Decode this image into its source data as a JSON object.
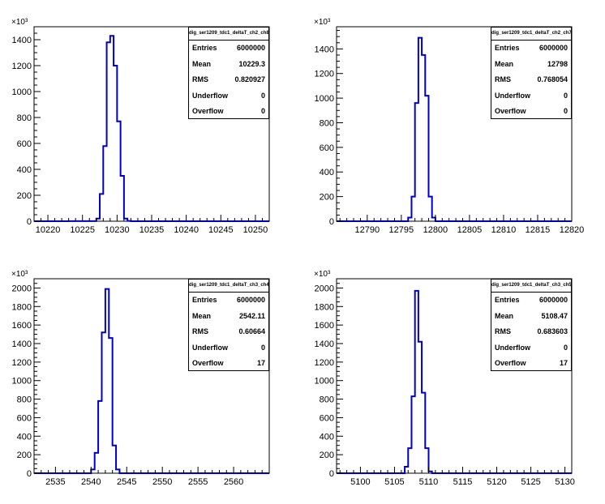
{
  "chart_data": [
    {
      "type": "histogram",
      "title": "dig_ser1209_tdc1_deltaT_ch2_ch8",
      "y_exponent_label": "×10³",
      "xlim": [
        10218,
        10252
      ],
      "ylim": [
        0,
        1500
      ],
      "xticks": [
        10220,
        10225,
        10230,
        10235,
        10240,
        10245,
        10250
      ],
      "yticks": [
        0,
        200,
        400,
        600,
        800,
        1000,
        1200,
        1400
      ],
      "ytick_labels": [
        "0",
        "200",
        "400",
        "600",
        "800",
        "1000",
        "1200",
        "1400"
      ],
      "bin_width": 0.5,
      "bins": [
        [
          10223.0,
          10227.0,
          1
        ],
        [
          10227.0,
          10227.5,
          20
        ],
        [
          10227.5,
          10228.0,
          210
        ],
        [
          10228.0,
          10228.5,
          580
        ],
        [
          10228.5,
          10229.0,
          1380
        ],
        [
          10229.0,
          10229.5,
          1430
        ],
        [
          10229.5,
          10230.0,
          1200
        ],
        [
          10230.0,
          10230.5,
          770
        ],
        [
          10230.5,
          10231.0,
          350
        ],
        [
          10231.0,
          10231.5,
          20
        ],
        [
          10231.5,
          10232.0,
          2
        ]
      ],
      "stats": {
        "Entries": "6000000",
        "Mean": "10229.3",
        "RMS": "0.820927",
        "Underflow": "0",
        "Overflow": "0"
      },
      "line_color": "#0000cc"
    },
    {
      "type": "histogram",
      "title": "dig_ser1209_tdc1_deltaT_ch2_ch7",
      "y_exponent_label": "×10³",
      "xlim": [
        12785.5,
        12820
      ],
      "ylim": [
        0,
        1580
      ],
      "xticks": [
        12790,
        12795,
        12800,
        12805,
        12810,
        12815,
        12820
      ],
      "yticks": [
        0,
        200,
        400,
        600,
        800,
        1000,
        1200,
        1400
      ],
      "ytick_labels": [
        "0",
        "200",
        "400",
        "600",
        "800",
        "1000",
        "1200",
        "1400"
      ],
      "bin_width": 0.5,
      "bins": [
        [
          12796.0,
          12796.5,
          30
        ],
        [
          12796.5,
          12797.0,
          200
        ],
        [
          12797.0,
          12797.5,
          960
        ],
        [
          12797.5,
          12798.0,
          1490
        ],
        [
          12798.0,
          12798.5,
          1350
        ],
        [
          12798.5,
          12799.0,
          1020
        ],
        [
          12799.0,
          12799.5,
          200
        ],
        [
          12799.5,
          12800.0,
          30
        ]
      ],
      "stats": {
        "Entries": "6000000",
        "Mean": "12798",
        "RMS": "0.768054",
        "Underflow": "0",
        "Overflow": "0"
      },
      "line_color": "#0000cc"
    },
    {
      "type": "histogram",
      "title": "dig_ser1209_tdc1_deltaT_ch3_ch4",
      "y_exponent_label": "×10³",
      "xlim": [
        2532,
        2565
      ],
      "ylim": [
        0,
        2100
      ],
      "xticks": [
        2535,
        2540,
        2545,
        2550,
        2555,
        2560
      ],
      "yticks": [
        0,
        200,
        400,
        600,
        800,
        1000,
        1200,
        1400,
        1600,
        1800,
        2000
      ],
      "ytick_labels": [
        "0",
        "200",
        "400",
        "600",
        "800",
        "1000",
        "1200",
        "1400",
        "1600",
        "1800",
        "2000"
      ],
      "bin_width": 0.5,
      "bins": [
        [
          2540.0,
          2540.5,
          40
        ],
        [
          2540.5,
          2541.0,
          220
        ],
        [
          2541.0,
          2541.5,
          780
        ],
        [
          2541.5,
          2542.0,
          1520
        ],
        [
          2542.0,
          2542.5,
          1990
        ],
        [
          2542.5,
          2543.0,
          1460
        ],
        [
          2543.0,
          2543.5,
          300
        ],
        [
          2543.5,
          2544.0,
          40
        ]
      ],
      "stats": {
        "Entries": "6000000",
        "Mean": "2542.11",
        "RMS": "0.60664",
        "Underflow": "0",
        "Overflow": "17"
      },
      "line_color": "#0000cc"
    },
    {
      "type": "histogram",
      "title": "dig_ser1209_tdc1_deltaT_ch3_ch5",
      "y_exponent_label": "×10³",
      "xlim": [
        5096.5,
        5131
      ],
      "ylim": [
        0,
        2100
      ],
      "xticks": [
        5100,
        5105,
        5110,
        5115,
        5120,
        5125,
        5130
      ],
      "yticks": [
        0,
        200,
        400,
        600,
        800,
        1000,
        1200,
        1400,
        1600,
        1800,
        2000
      ],
      "ytick_labels": [
        "0",
        "200",
        "400",
        "600",
        "800",
        "1000",
        "1200",
        "1400",
        "1600",
        "1800",
        "2000"
      ],
      "bin_width": 0.5,
      "bins": [
        [
          5106.5,
          5107.0,
          70
        ],
        [
          5107.0,
          5107.5,
          270
        ],
        [
          5107.5,
          5108.0,
          830
        ],
        [
          5108.0,
          5108.5,
          1970
        ],
        [
          5108.5,
          5109.0,
          1420
        ],
        [
          5109.0,
          5109.5,
          870
        ],
        [
          5109.5,
          5110.0,
          270
        ],
        [
          5110.0,
          5110.5,
          20
        ]
      ],
      "stats": {
        "Entries": "6000000",
        "Mean": "5108.47",
        "RMS": "0.683603",
        "Underflow": "0",
        "Overflow": "17"
      },
      "line_color": "#0000cc"
    }
  ]
}
